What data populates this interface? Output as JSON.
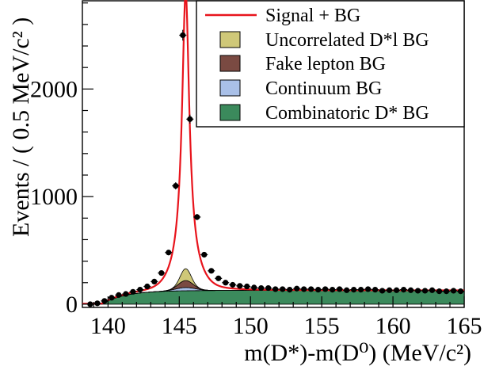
{
  "chart_data": {
    "type": "histogram-stack",
    "xlabel": "m(D*)-m(D⁰) (MeV/c²)",
    "ylabel": "Events / ( 0.5 MeV/c² )",
    "xlim": [
      138.2,
      165.0
    ],
    "ylim": [
      -30,
      2820
    ],
    "xticks": [
      140,
      145,
      150,
      155,
      160,
      165
    ],
    "yticks": [
      0,
      1000,
      2000
    ],
    "xtick_labels": [
      "140",
      "145",
      "150",
      "155",
      "160",
      "165"
    ],
    "ytick_labels": [
      "0",
      "1000",
      "2000"
    ],
    "legend_position": "top-right",
    "legend": [
      {
        "label": "Signal + BG",
        "kind": "line",
        "color": "#e8141c"
      },
      {
        "label": "Uncorrelated D*l BG",
        "kind": "box",
        "color": "#cfc878"
      },
      {
        "label": "Fake lepton BG",
        "kind": "box",
        "color": "#7a4a42"
      },
      {
        "label": "Continuum BG",
        "kind": "box",
        "color": "#a9c0e8"
      },
      {
        "label": "Combinatoric D* BG",
        "kind": "box",
        "color": "#3b8a5c"
      }
    ],
    "data_points": {
      "x": [
        138.75,
        139.25,
        139.75,
        140.25,
        140.75,
        141.25,
        141.75,
        142.25,
        142.75,
        143.25,
        143.75,
        144.25,
        144.75,
        145.25,
        145.75,
        146.25,
        146.75,
        147.25,
        147.75,
        148.25,
        148.75,
        149.25,
        149.75,
        150.25,
        150.75,
        151.25,
        151.75,
        152.25,
        152.75,
        153.25,
        153.75,
        154.25,
        154.75,
        155.25,
        155.75,
        156.25,
        156.75,
        157.25,
        157.75,
        158.25,
        158.75,
        159.25,
        159.75,
        160.25,
        160.75,
        161.25,
        161.75,
        162.25,
        162.75,
        163.25,
        163.75,
        164.25,
        164.75
      ],
      "y": [
        0,
        8,
        30,
        60,
        85,
        95,
        115,
        135,
        165,
        210,
        290,
        480,
        1100,
        2500,
        1720,
        810,
        460,
        310,
        240,
        200,
        180,
        170,
        165,
        155,
        150,
        150,
        140,
        140,
        135,
        145,
        140,
        140,
        135,
        140,
        135,
        140,
        130,
        135,
        135,
        140,
        135,
        125,
        130,
        130,
        135,
        130,
        125,
        125,
        130,
        120,
        120,
        125,
        120
      ]
    },
    "signal_peak": {
      "mean": 145.45,
      "amplitude": 2580
    },
    "components": {
      "combinatoric_D_star": {
        "threshold": 139.57,
        "plateau": 128
      },
      "continuum_peak": 30,
      "fake_lepton_peak": 65,
      "uncorrelated_Dl_peak": 110
    }
  }
}
